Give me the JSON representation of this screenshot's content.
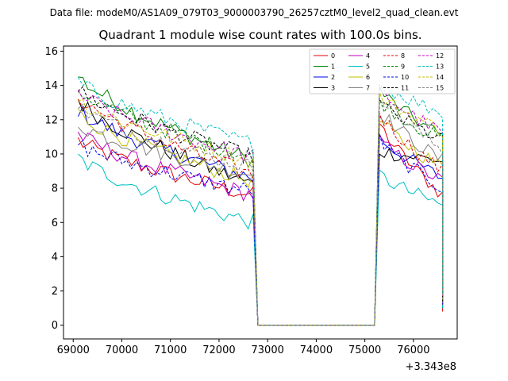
{
  "chart_data": {
    "type": "line",
    "suptitle": "Data file: modeM0/AS1A09_079T03_9000003790_26257cztM0_level2_quad_clean.evt",
    "title": "Quadrant 1 module wise count rates with 100.0s bins.",
    "xlabel": "",
    "ylabel": "",
    "x_offset_label": "+3.343e8",
    "xlim": [
      68800,
      76900
    ],
    "ylim": [
      -0.8,
      16.3
    ],
    "x_ticks": [
      69000,
      70000,
      71000,
      72000,
      73000,
      74000,
      75000,
      76000
    ],
    "x_tick_labels": [
      "69000",
      "70000",
      "71000",
      "72000",
      "73000",
      "74000",
      "75000",
      "76000"
    ],
    "y_ticks": [
      0,
      2,
      4,
      6,
      8,
      10,
      12,
      14,
      16
    ],
    "y_tick_labels": [
      "0",
      "2",
      "4",
      "6",
      "8",
      "10",
      "12",
      "14",
      "16"
    ],
    "grid": false,
    "legend_position": "top-right",
    "gap": {
      "start": 72800,
      "end": 75200
    },
    "segment1": {
      "x_start": 69100,
      "x_end": 72700,
      "step": 100
    },
    "segment2": {
      "x_start": 75300,
      "x_end": 76600,
      "step": 100
    },
    "series": [
      {
        "name": "0",
        "color": "#e00000",
        "dash": "solid",
        "s1_start": 10.8,
        "s1_end": 7.6,
        "gap_edge1": 0.0,
        "s2_start": 11.8,
        "s2_end": 7.6,
        "last": 0.8
      },
      {
        "name": "1",
        "color": "#007f00",
        "dash": "solid",
        "s1_start": 14.6,
        "s1_end": 9.6,
        "gap_edge1": 0.0,
        "s2_start": 13.8,
        "s2_end": 11.0,
        "last": 1.5
      },
      {
        "name": "2",
        "color": "#0000ee",
        "dash": "solid",
        "s1_start": 12.6,
        "s1_end": 8.6,
        "gap_edge1": 0.0,
        "s2_start": 11.0,
        "s2_end": 8.6,
        "last": 1.2
      },
      {
        "name": "3",
        "color": "#000000",
        "dash": "solid",
        "s1_start": 13.2,
        "s1_end": 8.2,
        "gap_edge1": 0.0,
        "s2_start": 10.2,
        "s2_end": 9.6,
        "last": 1.0
      },
      {
        "name": "4",
        "color": "#bf00bf",
        "dash": "solid",
        "s1_start": 11.2,
        "s1_end": 7.6,
        "gap_edge1": 0.0,
        "s2_start": 10.8,
        "s2_end": 8.4,
        "last": 1.2
      },
      {
        "name": "5",
        "color": "#00bfbf",
        "dash": "solid",
        "s1_start": 9.8,
        "s1_end": 6.0,
        "gap_edge1": 0.0,
        "s2_start": 8.8,
        "s2_end": 7.0,
        "last": 1.0
      },
      {
        "name": "6",
        "color": "#bfbf00",
        "dash": "solid",
        "s1_start": 12.4,
        "s1_end": 8.4,
        "gap_edge1": 0.0,
        "s2_start": 12.0,
        "s2_end": 9.2,
        "last": 1.3
      },
      {
        "name": "7",
        "color": "#808080",
        "dash": "solid",
        "s1_start": 11.8,
        "s1_end": 8.8,
        "gap_edge1": 0.0,
        "s2_start": 12.6,
        "s2_end": 9.6,
        "last": 1.3
      },
      {
        "name": "8",
        "color": "#e00000",
        "dash": "dashed",
        "s1_start": 13.4,
        "s1_end": 8.8,
        "gap_edge1": 0.0,
        "s2_start": 12.4,
        "s2_end": 9.0,
        "last": 1.2
      },
      {
        "name": "9",
        "color": "#007f00",
        "dash": "dashed",
        "s1_start": 13.8,
        "s1_end": 9.8,
        "gap_edge1": 0.0,
        "s2_start": 13.2,
        "s2_end": 10.8,
        "last": 1.4
      },
      {
        "name": "10",
        "color": "#0000ee",
        "dash": "dashed",
        "s1_start": 10.6,
        "s1_end": 7.8,
        "gap_edge1": 0.0,
        "s2_start": 10.8,
        "s2_end": 8.0,
        "last": 1.2
      },
      {
        "name": "11",
        "color": "#000000",
        "dash": "dashed",
        "s1_start": 13.8,
        "s1_end": 9.8,
        "gap_edge1": 0.0,
        "s2_start": 13.0,
        "s2_end": 10.8,
        "last": 1.4
      },
      {
        "name": "12",
        "color": "#bf00bf",
        "dash": "dashed",
        "s1_start": 13.6,
        "s1_end": 9.8,
        "gap_edge1": 0.0,
        "s2_start": 13.8,
        "s2_end": 11.2,
        "last": 1.5
      },
      {
        "name": "13",
        "color": "#00bfbf",
        "dash": "dashed",
        "s1_start": 14.2,
        "s1_end": 10.6,
        "gap_edge1": 0.0,
        "s2_start": 14.2,
        "s2_end": 12.4,
        "last": 1.8
      },
      {
        "name": "14",
        "color": "#bfbf00",
        "dash": "dashed",
        "s1_start": 13.2,
        "s1_end": 9.6,
        "gap_edge1": 0.0,
        "s2_start": 13.4,
        "s2_end": 11.4,
        "last": 1.5
      },
      {
        "name": "15",
        "color": "#808080",
        "dash": "dashed",
        "s1_start": 12.8,
        "s1_end": 9.2,
        "gap_edge1": 0.0,
        "s2_start": 13.6,
        "s2_end": 10.2,
        "last": 1.3
      }
    ]
  }
}
